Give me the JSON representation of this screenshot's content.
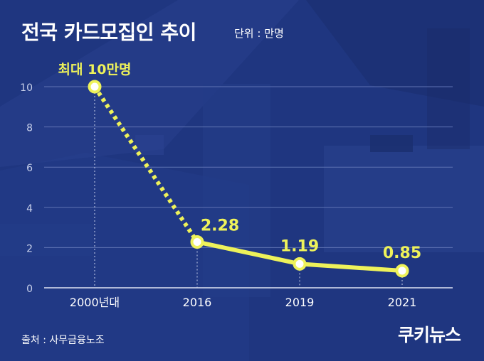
{
  "header": {
    "title": "전국 카드모집인 추이",
    "unit": "단위 : 만명"
  },
  "footer": {
    "source": "출처 : 사무금융노조",
    "logo": "쿠키뉴스"
  },
  "colors": {
    "background": "#1f3680",
    "accent": "#eef25a",
    "text": "#ffffff",
    "axis": "#c8d0ea",
    "grid": "#5f73b3"
  },
  "chart_data": {
    "type": "line",
    "title": "전국 카드모집인 추이",
    "xlabel": "",
    "ylabel": "",
    "categories": [
      "2000년대",
      "2016",
      "2019",
      "2021"
    ],
    "x": [
      2004,
      2016,
      2019,
      2021
    ],
    "values": [
      10,
      2.28,
      1.19,
      0.85
    ],
    "data_labels": [
      "최대 10만명",
      "2.28",
      "1.19",
      "0.85"
    ],
    "ylim": [
      0,
      10
    ],
    "yticks": [
      "0",
      "2",
      "4",
      "6",
      "8",
      "10"
    ],
    "grid": true,
    "first_segment_style": "dotted"
  }
}
